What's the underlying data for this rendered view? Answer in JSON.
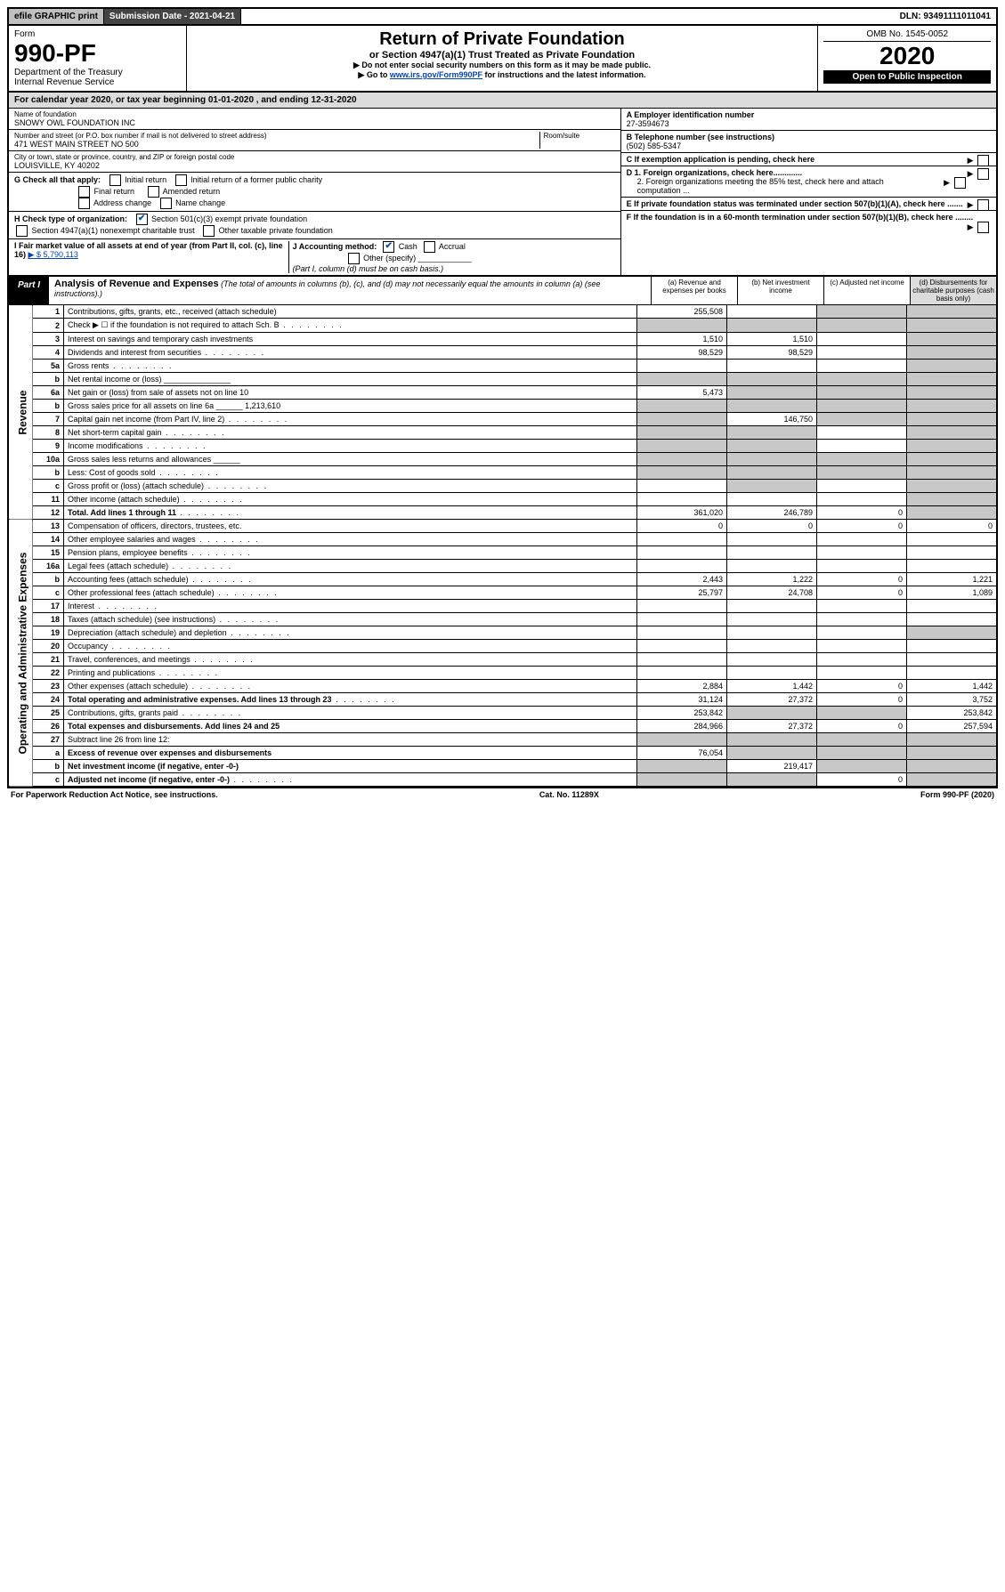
{
  "topbar": {
    "efile": "efile GRAPHIC print",
    "submission": "Submission Date - 2021-04-21",
    "dln": "DLN: 93491111011041"
  },
  "header": {
    "form_label": "Form",
    "form_no": "990-PF",
    "dept1": "Department of the Treasury",
    "dept2": "Internal Revenue Service",
    "title": "Return of Private Foundation",
    "subtitle": "or Section 4947(a)(1) Trust Treated as Private Foundation",
    "instr1": "▶ Do not enter social security numbers on this form as it may be made public.",
    "instr2_pre": "▶ Go to ",
    "instr2_link": "www.irs.gov/Form990PF",
    "instr2_post": " for instructions and the latest information.",
    "omb": "OMB No. 1545-0052",
    "year": "2020",
    "open": "Open to Public Inspection"
  },
  "cal": "For calendar year 2020, or tax year beginning 01-01-2020                             , and ending 12-31-2020",
  "id": {
    "name_lbl": "Name of foundation",
    "name": "SNOWY OWL FOUNDATION INC",
    "addr_lbl": "Number and street (or P.O. box number if mail is not delivered to street address)",
    "room_lbl": "Room/suite",
    "addr": "471 WEST MAIN STREET NO 500",
    "city_lbl": "City or town, state or province, country, and ZIP or foreign postal code",
    "city": "LOUISVILLE, KY  40202",
    "A_lbl": "A Employer identification number",
    "A_val": "27-3594673",
    "B_lbl": "B Telephone number (see instructions)",
    "B_val": "(502) 585-5347",
    "C_lbl": "C If exemption application is pending, check here",
    "D1": "D 1. Foreign organizations, check here.............",
    "D2": "2. Foreign organizations meeting the 85% test, check here and attach computation ...",
    "E": "E  If private foundation status was terminated under section 507(b)(1)(A), check here .......",
    "F": "F  If the foundation is in a 60-month termination under section 507(b)(1)(B), check here ........"
  },
  "G": {
    "label": "G Check all that apply:",
    "initial": "Initial return",
    "initial_former": "Initial return of a former public charity",
    "final": "Final return",
    "amended": "Amended return",
    "addr_chg": "Address change",
    "name_chg": "Name change"
  },
  "H": {
    "label": "H Check type of organization:",
    "s501": "Section 501(c)(3) exempt private foundation",
    "s4947": "Section 4947(a)(1) nonexempt charitable trust",
    "other_tax": "Other taxable private foundation"
  },
  "I": {
    "label": "I Fair market value of all assets at end of year (from Part II, col. (c), line 16)",
    "val": "▶ $  5,790,113"
  },
  "J": {
    "label": "J Accounting method:",
    "cash": "Cash",
    "accrual": "Accrual",
    "other": "Other (specify)",
    "note": "(Part I, column (d) must be on cash basis.)"
  },
  "part1": {
    "tab": "Part I",
    "title_b": "Analysis of Revenue and Expenses",
    "title_i": " (The total of amounts in columns (b), (c), and (d) may not necessarily equal the amounts in column (a) (see instructions).)",
    "col_a": "(a)    Revenue and expenses per books",
    "col_b": "(b)   Net investment income",
    "col_c": "(c)   Adjusted net income",
    "col_d": "(d)   Disbursements for charitable purposes (cash basis only)"
  },
  "sections": {
    "revenue": "Revenue",
    "expenses": "Operating and Administrative Expenses"
  },
  "rows": [
    {
      "n": "1",
      "d": "shade",
      "a": "255,508",
      "b": "",
      "c": "shade"
    },
    {
      "n": "2",
      "d": "shade",
      "dots": true,
      "a": "",
      "b": "",
      "c": "shade",
      "b_shade": true,
      "a_shade": true
    },
    {
      "n": "3",
      "d": "shade",
      "a": "1,510",
      "b": "1,510",
      "c": ""
    },
    {
      "n": "4",
      "d": "shade",
      "dots": true,
      "a": "98,529",
      "b": "98,529",
      "c": ""
    },
    {
      "n": "5a",
      "d": "shade",
      "dots": true,
      "a": "",
      "b": "",
      "c": ""
    },
    {
      "n": "b",
      "d": "shade",
      "a": "shade",
      "b": "shade",
      "c": "shade"
    },
    {
      "n": "6a",
      "d": "shade",
      "a": "5,473",
      "b": "shade",
      "c": "shade"
    },
    {
      "n": "b",
      "d": "shade",
      "a": "shade",
      "b": "shade",
      "c": "shade"
    },
    {
      "n": "7",
      "d": "shade",
      "dots": true,
      "a": "shade",
      "b": "146,750",
      "c": "shade"
    },
    {
      "n": "8",
      "d": "shade",
      "dots": true,
      "a": "shade",
      "b": "shade",
      "c": ""
    },
    {
      "n": "9",
      "d": "shade",
      "dots": true,
      "a": "shade",
      "b": "shade",
      "c": ""
    },
    {
      "n": "10a",
      "d": "shade",
      "a": "shade",
      "b": "shade",
      "c": "shade"
    },
    {
      "n": "b",
      "d": "shade",
      "dots": true,
      "extra": "______",
      "a": "shade",
      "b": "shade",
      "c": "shade"
    },
    {
      "n": "c",
      "d": "shade",
      "dots": true,
      "a": "",
      "b": "shade",
      "c": ""
    },
    {
      "n": "11",
      "d": "shade",
      "dots": true,
      "a": "",
      "b": "",
      "c": ""
    },
    {
      "n": "12",
      "d": "shade",
      "bold": true,
      "dots": true,
      "a": "361,020",
      "b": "246,789",
      "c": "0"
    }
  ],
  "exp_rows": [
    {
      "n": "13",
      "d": "0",
      "a": "0",
      "b": "0",
      "c": "0"
    },
    {
      "n": "14",
      "d": "",
      "dots": true,
      "a": "",
      "b": "",
      "c": ""
    },
    {
      "n": "15",
      "d": "",
      "dots": true,
      "a": "",
      "b": "",
      "c": ""
    },
    {
      "n": "16a",
      "d": "",
      "dots": true,
      "a": "",
      "b": "",
      "c": ""
    },
    {
      "n": "b",
      "d": "1,221",
      "dots": true,
      "a": "2,443",
      "b": "1,222",
      "c": "0"
    },
    {
      "n": "c",
      "d": "1,089",
      "dots": true,
      "a": "25,797",
      "b": "24,708",
      "c": "0"
    },
    {
      "n": "17",
      "d": "",
      "dots": true,
      "a": "",
      "b": "",
      "c": ""
    },
    {
      "n": "18",
      "d": "",
      "dots": true,
      "a": "",
      "b": "",
      "c": ""
    },
    {
      "n": "19",
      "d": "shade",
      "dots": true,
      "a": "",
      "b": "",
      "c": ""
    },
    {
      "n": "20",
      "d": "",
      "dots": true,
      "a": "",
      "b": "",
      "c": ""
    },
    {
      "n": "21",
      "d": "",
      "dots": true,
      "a": "",
      "b": "",
      "c": ""
    },
    {
      "n": "22",
      "d": "",
      "dots": true,
      "a": "",
      "b": "",
      "c": ""
    },
    {
      "n": "23",
      "d": "1,442",
      "dots": true,
      "a": "2,884",
      "b": "1,442",
      "c": "0"
    },
    {
      "n": "24",
      "d": "3,752",
      "bold": true,
      "dots": true,
      "a": "31,124",
      "b": "27,372",
      "c": "0"
    },
    {
      "n": "25",
      "d": "253,842",
      "dots": true,
      "a": "253,842",
      "b": "shade",
      "c": "shade"
    },
    {
      "n": "26",
      "d": "257,594",
      "bold": true,
      "a": "284,966",
      "b": "27,372",
      "c": "0"
    },
    {
      "n": "27",
      "d": "shade",
      "a": "shade",
      "b": "shade",
      "c": "shade"
    },
    {
      "n": "a",
      "d": "shade",
      "bold": true,
      "a": "76,054",
      "b": "shade",
      "c": "shade"
    },
    {
      "n": "b",
      "d": "shade",
      "bold": true,
      "a": "shade",
      "b": "219,417",
      "c": "shade"
    },
    {
      "n": "c",
      "d": "shade",
      "bold": true,
      "dots": true,
      "a": "shade",
      "b": "shade",
      "c": "0"
    }
  ],
  "footer": {
    "left": "For Paperwork Reduction Act Notice, see instructions.",
    "mid": "Cat. No. 11289X",
    "right": "Form 990-PF (2020)"
  }
}
